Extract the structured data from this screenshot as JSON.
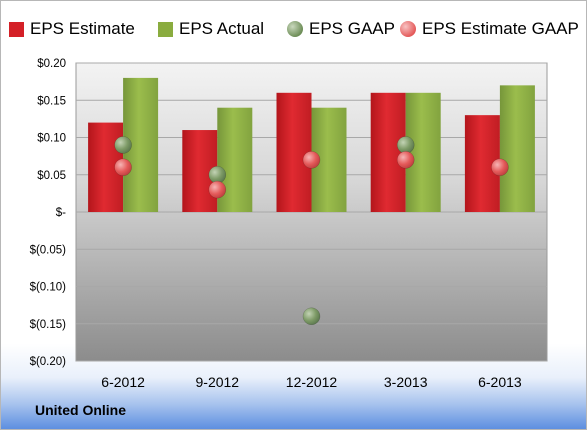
{
  "brand_label": "United Online",
  "chart_data": {
    "type": "bar",
    "categories": [
      "6-2012",
      "9-2012",
      "12-2012",
      "3-2013",
      "6-2013"
    ],
    "series": [
      {
        "name": "EPS Estimate",
        "kind": "bar",
        "color": "#d42027",
        "values": [
          0.12,
          0.11,
          0.16,
          0.16,
          0.13
        ]
      },
      {
        "name": "EPS Actual",
        "kind": "bar",
        "color": "#8aac3f",
        "values": [
          0.18,
          0.14,
          0.14,
          0.16,
          0.17
        ]
      },
      {
        "name": "EPS GAAP",
        "kind": "point",
        "color": "#6e8e58",
        "values": [
          0.09,
          0.05,
          -0.14,
          0.09,
          null
        ]
      },
      {
        "name": "EPS Estimate GAAP",
        "kind": "point",
        "color": "#e45a5a",
        "values": [
          0.06,
          0.03,
          0.07,
          0.07,
          0.06
        ]
      }
    ],
    "ylim": [
      -0.2,
      0.2
    ],
    "yticks": [
      0.2,
      0.15,
      0.1,
      0.05,
      0,
      -0.05,
      -0.1,
      -0.15,
      -0.2
    ],
    "ytick_labels": [
      "$0.20",
      "$0.15",
      "$0.10",
      "$0.05",
      "$-",
      "$(0.05)",
      "$(0.10)",
      "$(0.15)",
      "$(0.20)"
    ],
    "grid": true,
    "legend_position": "top"
  }
}
